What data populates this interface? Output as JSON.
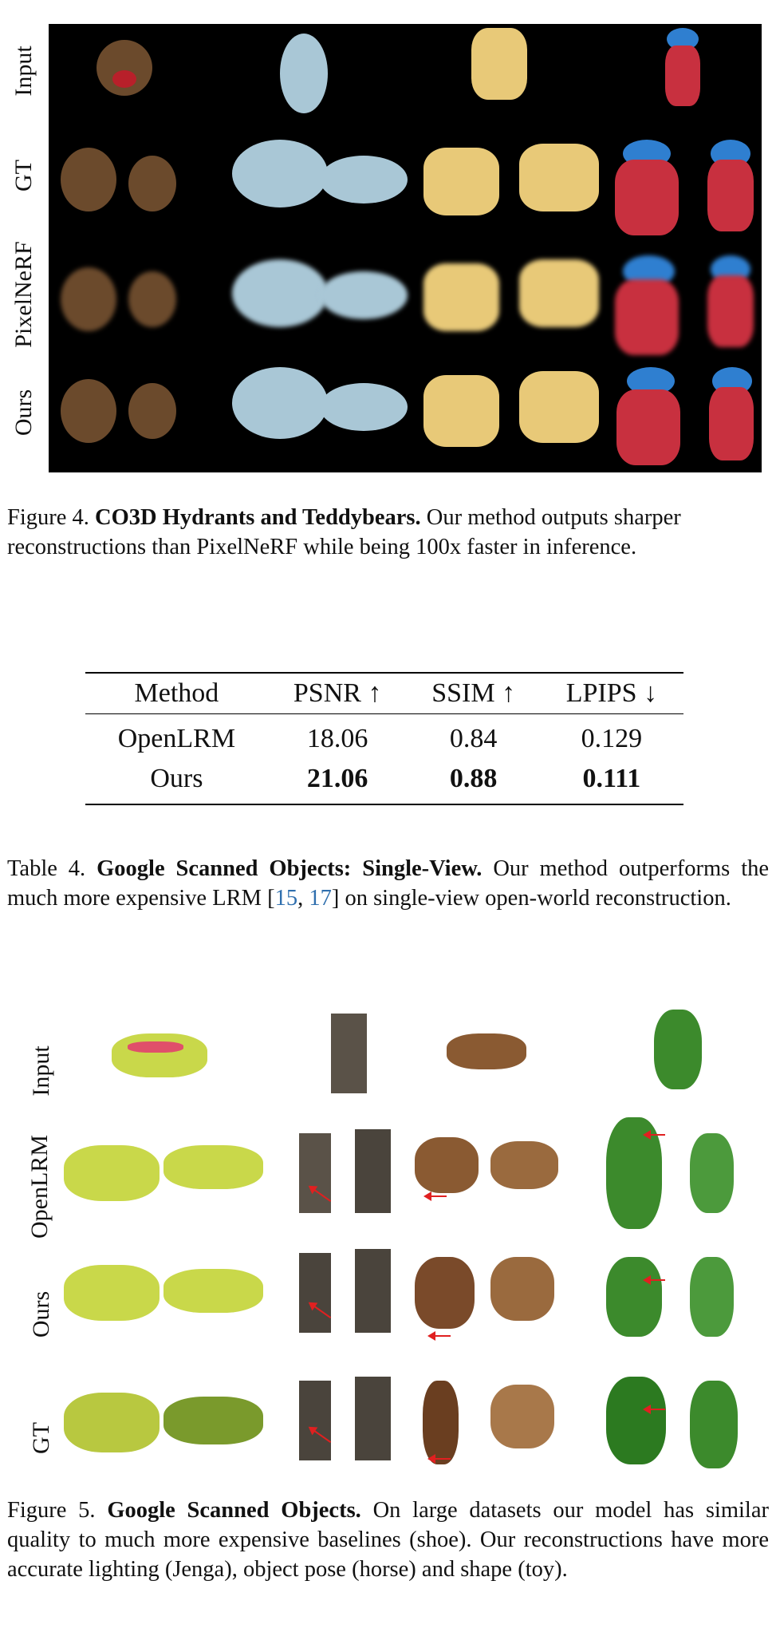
{
  "figure4": {
    "row_labels": [
      "Input",
      "GT",
      "PixelNeRF",
      "Ours"
    ],
    "caption_prefix": "Figure 4.",
    "caption_title": "CO3D Hydrants and Teddybears.",
    "caption_body": "Our method outputs sharper reconstructions than PixelNeRF while being 100x faster in inference.",
    "colors": {
      "background": "#000000",
      "lion": "#6b4a2c",
      "teddy": "#a9c7d6",
      "yellow_hydrant": "#e8c978",
      "red_hydrant": "#c8303f",
      "hydrant_cap": "#2f7fd0"
    }
  },
  "table4": {
    "columns": [
      "Method",
      "PSNR ↑",
      "SSIM ↑",
      "LPIPS ↓"
    ],
    "rows": [
      [
        "OpenLRM",
        "18.06",
        "0.84",
        "0.129"
      ],
      [
        "Ours",
        "21.06",
        "0.88",
        "0.111"
      ]
    ],
    "caption_prefix": "Table 4.",
    "caption_title": "Google Scanned Objects: Single-View.",
    "caption_body_1": "Our method outperforms the much more expensive LRM [",
    "ref_1": "15",
    "caption_sep": ", ",
    "ref_2": "17",
    "caption_body_2": "] on single-view open-world reconstruction."
  },
  "figure5": {
    "row_labels": [
      "Input",
      "OpenLRM",
      "Ours",
      "GT"
    ],
    "caption_prefix": "Figure 5.",
    "caption_title": "Google Scanned Objects.",
    "caption_body": "On large datasets our model has similar quality to much more expensive baselines (shoe). Our reconstructions have more accurate lighting (Jenga), object pose (horse) and shape (toy).",
    "colors": {
      "shoe": "#c9d84a",
      "shoe_accent": "#e0506a",
      "jenga": "#5a5248",
      "horse": "#8a5a32",
      "toy": "#3c8a2c",
      "arrow": "#e02020"
    }
  }
}
